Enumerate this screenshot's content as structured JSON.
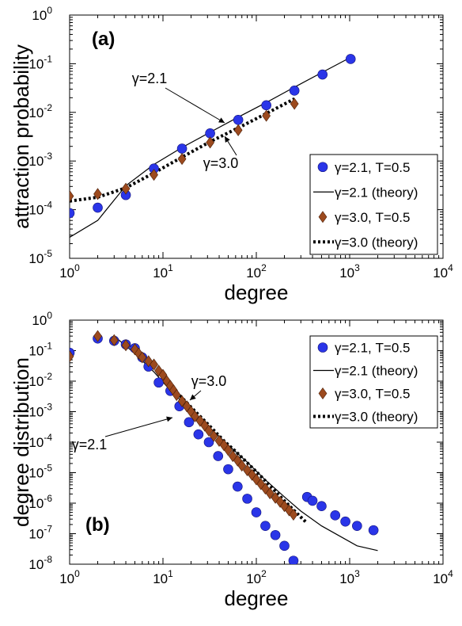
{
  "chart_data": [
    {
      "type": "scatter",
      "panel_label": "(a)",
      "xlabel": "degree",
      "ylabel": "attraction probability",
      "xscale": "log",
      "yscale": "log",
      "xlim": [
        1,
        10000
      ],
      "ylim": [
        1e-05,
        1
      ],
      "xticks": [
        {
          "base": "10",
          "exp": "0"
        },
        {
          "base": "10",
          "exp": "1"
        },
        {
          "base": "10",
          "exp": "2"
        },
        {
          "base": "10",
          "exp": "3"
        },
        {
          "base": "10",
          "exp": "4"
        }
      ],
      "yticks": [
        {
          "base": "10",
          "exp": "-5"
        },
        {
          "base": "10",
          "exp": "-4"
        },
        {
          "base": "10",
          "exp": "-3"
        },
        {
          "base": "10",
          "exp": "-2"
        },
        {
          "base": "10",
          "exp": "-1"
        },
        {
          "base": "10",
          "exp": "0"
        }
      ],
      "legend_position": "bottom-right",
      "series": [
        {
          "name": "γ=2.1, T=0.5",
          "style": "blue-circle",
          "x": [
            1,
            2,
            4,
            8,
            16,
            32,
            64,
            128,
            256,
            512,
            1024
          ],
          "y": [
            8.5e-05,
            0.00011,
            0.0002,
            0.0007,
            0.0018,
            0.0037,
            0.007,
            0.014,
            0.028,
            0.06,
            0.125
          ]
        },
        {
          "name": "γ=2.1 (theory)",
          "style": "solid-line",
          "x": [
            1,
            2,
            4,
            8,
            16,
            32,
            64,
            128,
            256,
            512,
            1024
          ],
          "y": [
            2.7e-05,
            6e-05,
            0.00031,
            0.00085,
            0.0019,
            0.0039,
            0.008,
            0.016,
            0.033,
            0.067,
            0.135
          ]
        },
        {
          "name": "γ=3.0, T=0.5",
          "style": "brown-diamond",
          "x": [
            1,
            2,
            4,
            8,
            16,
            32,
            64,
            128,
            256
          ],
          "y": [
            0.00019,
            0.00021,
            0.00027,
            0.00052,
            0.0011,
            0.0024,
            0.0043,
            0.0085,
            0.015
          ]
        },
        {
          "name": "γ=3.0 (theory)",
          "style": "dotted-line",
          "x": [
            1,
            2,
            4,
            8,
            16,
            32,
            64,
            128,
            256
          ],
          "y": [
            0.00015,
            0.00018,
            0.00028,
            0.00057,
            0.0012,
            0.0025,
            0.0048,
            0.0095,
            0.019
          ]
        }
      ],
      "annotations": [
        {
          "text": "γ=2.1",
          "x": 45,
          "y": 0.0052
        },
        {
          "text": "γ=3.0",
          "x": 45,
          "y": 0.0032
        }
      ]
    },
    {
      "type": "scatter",
      "panel_label": "(b)",
      "xlabel": "degree",
      "ylabel": "degree distribution",
      "xscale": "log",
      "yscale": "log",
      "xlim": [
        1,
        10000
      ],
      "ylim": [
        1e-08,
        1
      ],
      "xticks": [
        {
          "base": "10",
          "exp": "0"
        },
        {
          "base": "10",
          "exp": "1"
        },
        {
          "base": "10",
          "exp": "2"
        },
        {
          "base": "10",
          "exp": "3"
        },
        {
          "base": "10",
          "exp": "4"
        }
      ],
      "yticks": [
        {
          "base": "10",
          "exp": "-8"
        },
        {
          "base": "10",
          "exp": "-7"
        },
        {
          "base": "10",
          "exp": "-6"
        },
        {
          "base": "10",
          "exp": "-5"
        },
        {
          "base": "10",
          "exp": "-4"
        },
        {
          "base": "10",
          "exp": "-3"
        },
        {
          "base": "10",
          "exp": "-2"
        },
        {
          "base": "10",
          "exp": "-1"
        },
        {
          "base": "10",
          "exp": "0"
        }
      ],
      "legend_position": "top-right",
      "series": [
        {
          "name": "γ=2.1, T=0.5",
          "style": "blue-circle",
          "x": [
            1,
            2,
            3,
            4,
            5,
            6,
            7,
            9,
            12,
            15,
            19,
            24,
            31,
            39,
            50,
            63,
            80,
            100,
            125,
            160,
            200,
            250,
            350,
            400,
            500,
            700,
            900,
            1200,
            1800
          ],
          "y": [
            0.085,
            0.25,
            0.21,
            0.16,
            0.12,
            0.06,
            0.03,
            0.009,
            0.0048,
            0.0015,
            0.00045,
            0.00018,
            0.0001,
            3.5e-05,
            1.3e-05,
            3.5e-06,
            1.4e-06,
            5e-07,
            1.8e-07,
            9e-08,
            4e-08,
            1.3e-08,
            1.6e-06,
            1.2e-06,
            8e-07,
            4e-07,
            2.5e-07,
            1.8e-07,
            1.3e-07
          ]
        },
        {
          "name": "γ=2.1 (theory)",
          "style": "solid-line",
          "x": [
            3,
            5,
            8,
            12,
            20,
            30,
            50,
            80,
            120,
            200,
            300,
            500,
            800,
            1200,
            2000
          ],
          "y": [
            0.3,
            0.08,
            0.02,
            0.005,
            0.0011,
            0.00035,
            8e-05,
            2.2e-05,
            6.5e-06,
            1.6e-06,
            5.5e-07,
            1.8e-07,
            8e-08,
            4e-08,
            2.8e-08
          ]
        },
        {
          "name": "γ=3.0, T=0.5",
          "style": "brown-diamond",
          "x": [
            1,
            2,
            3,
            4,
            5,
            5.5,
            6,
            7,
            8,
            9,
            10,
            11,
            12,
            13,
            14,
            16,
            18,
            20,
            22,
            25,
            28,
            31,
            35,
            40,
            45,
            50,
            56,
            63,
            70,
            80,
            90,
            100,
            112,
            125,
            140,
            160,
            180,
            200,
            225,
            250
          ],
          "y": [
            0.065,
            0.3,
            0.22,
            0.15,
            0.11,
            0.08,
            0.06,
            0.045,
            0.035,
            0.022,
            0.016,
            0.01,
            0.007,
            0.005,
            0.0035,
            0.0022,
            0.0015,
            0.001,
            0.0007,
            0.0005,
            0.00035,
            0.00024,
            0.00016,
            0.00011,
            8e-05,
            5.5e-05,
            3.5e-05,
            2.5e-05,
            1.7e-05,
            1.2e-05,
            8.5e-06,
            6e-06,
            4.2e-06,
            3e-06,
            2.1e-06,
            1.5e-06,
            1.1e-06,
            8e-07,
            5.8e-07,
            4.2e-07
          ]
        },
        {
          "name": "γ=3.0 (theory)",
          "style": "dotted-line",
          "x": [
            10,
            15,
            20,
            30,
            45,
            60,
            80,
            110,
            150,
            200,
            250,
            350
          ],
          "y": [
            0.012,
            0.0035,
            0.0014,
            0.0004,
            0.00011,
            5e-05,
            2.1e-05,
            8e-06,
            3e-06,
            1.2e-06,
            6e-07,
            2.2e-07
          ]
        }
      ],
      "annotations": [
        {
          "text": "γ=3.0",
          "x": 30,
          "y": 0.085
        },
        {
          "text": "γ=2.1",
          "x": 5.5,
          "y": 0.00035
        }
      ]
    }
  ]
}
